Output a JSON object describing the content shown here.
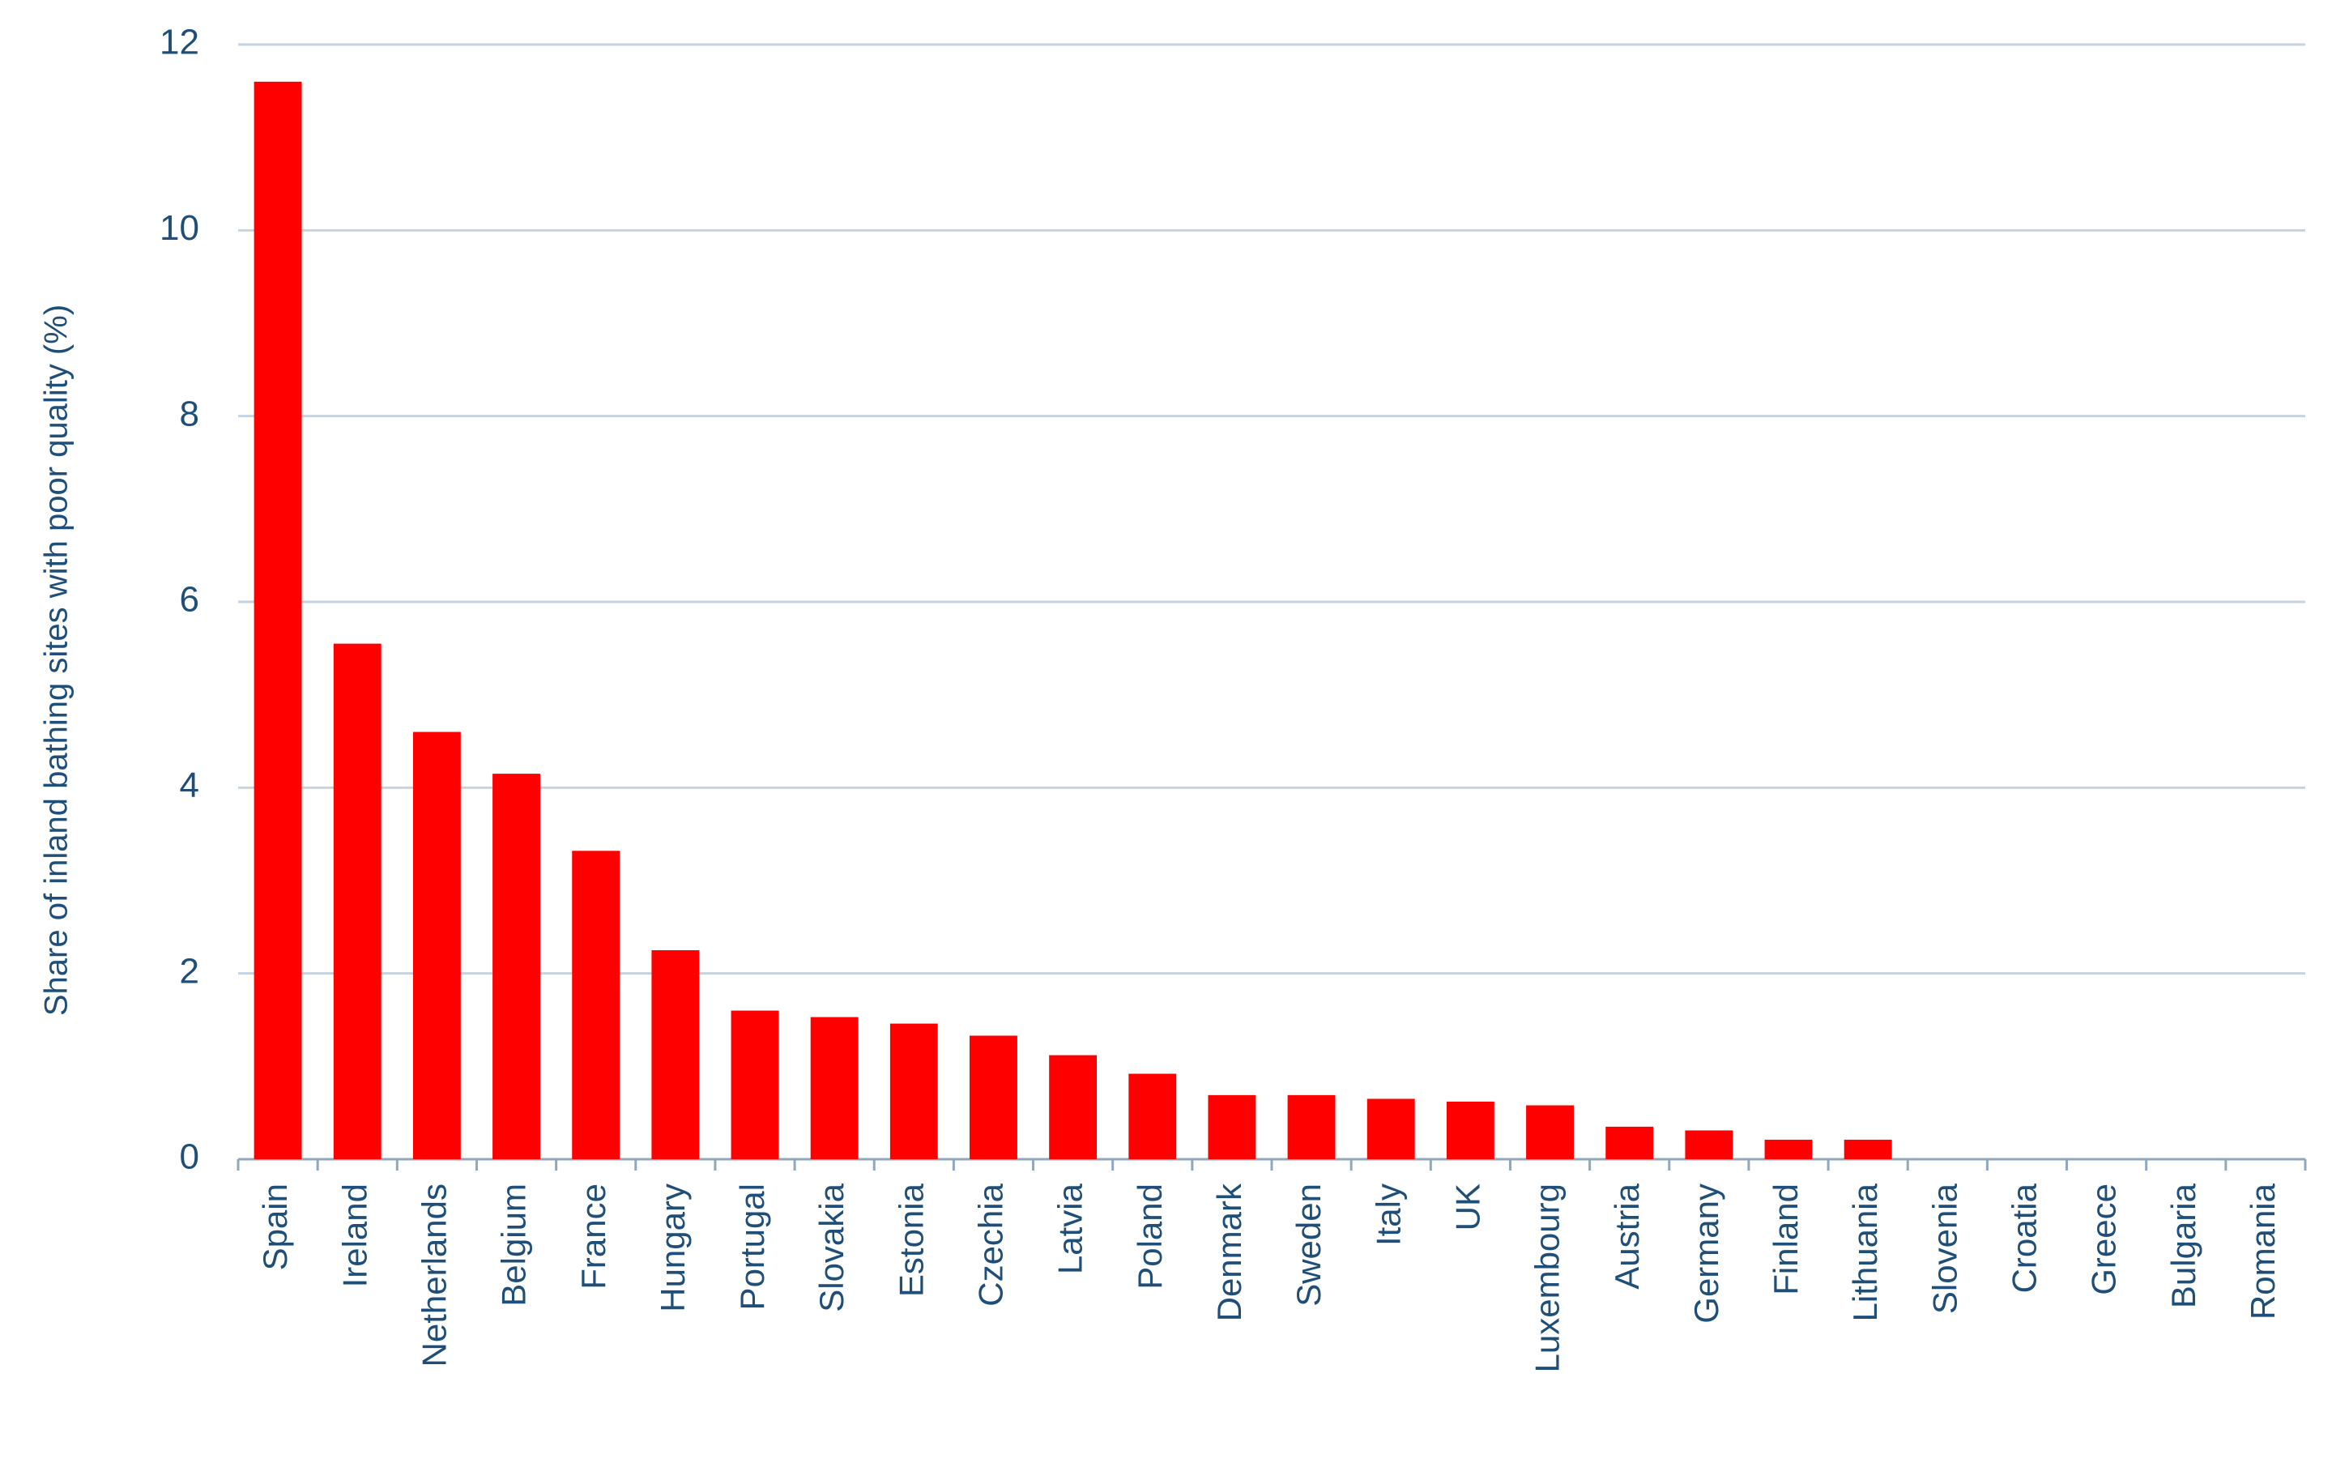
{
  "chart_data": {
    "type": "bar",
    "y_label": "Share of inland bathing sites with poor quality (%)",
    "categories": [
      "Spain",
      "Ireland",
      "Netherlands",
      "Belgium",
      "France",
      "Hungary",
      "Portugal",
      "Slovakia",
      "Estonia",
      "Czechia",
      "Latvia",
      "Poland",
      "Denmark",
      "Sweden",
      "Italy",
      "UK",
      "Luxembourg",
      "Austria",
      "Germany",
      "Finland",
      "Lithuania",
      "Slovenia",
      "Croatia",
      "Greece",
      "Bulgaria",
      "Romania"
    ],
    "values": [
      11.6,
      5.55,
      4.6,
      4.15,
      3.32,
      2.25,
      1.6,
      1.53,
      1.46,
      1.33,
      1.12,
      0.92,
      0.69,
      0.69,
      0.65,
      0.62,
      0.58,
      0.35,
      0.31,
      0.21,
      0.21,
      0,
      0,
      0,
      0,
      0
    ],
    "color": "#ff0000",
    "ylim": [
      0,
      12
    ],
    "yticks": [
      0,
      2,
      4,
      6,
      8,
      10,
      12
    ],
    "grid": true
  }
}
